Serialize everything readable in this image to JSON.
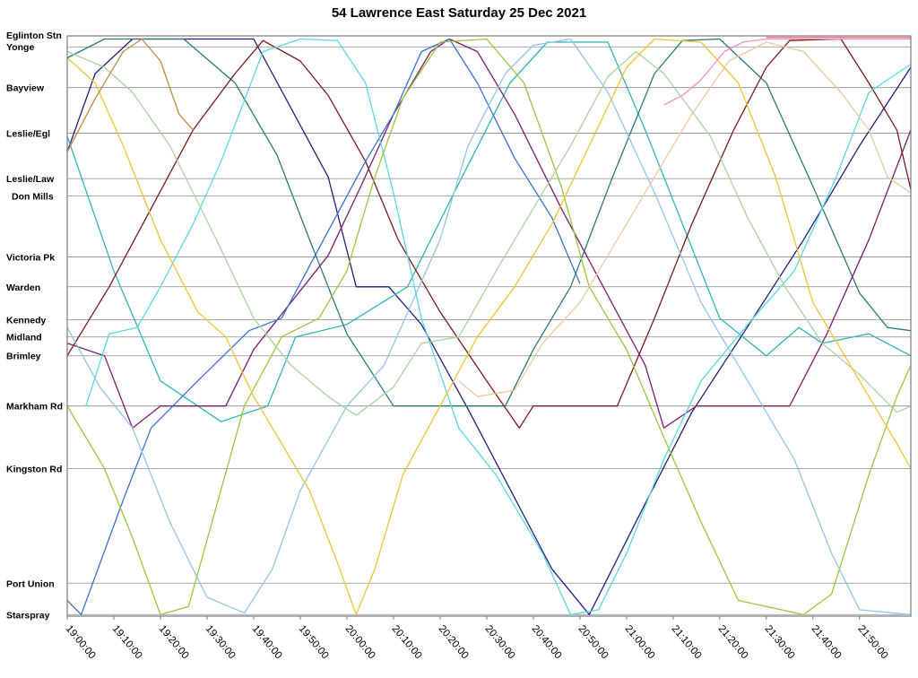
{
  "chart_data": {
    "type": "line",
    "title": "54 Lawrence East Saturday 25 Dec 2021",
    "xlabel": "",
    "ylabel": "",
    "x_unit": "minutes after 19:00:00",
    "xlim": [
      0,
      181
    ],
    "ylim": [
      0,
      18.5
    ],
    "grid": "horizontal",
    "legend": "none",
    "stops": [
      {
        "name": "Eglinton Stn",
        "pos": 0
      },
      {
        "name": "Yonge",
        "pos": 0.35
      },
      {
        "name": "Bayview",
        "pos": 1.65
      },
      {
        "name": "Leslie/Egl",
        "pos": 3.1
      },
      {
        "name": "Leslie/Law",
        "pos": 4.55
      },
      {
        "name": "Don Mills",
        "pos": 5.1
      },
      {
        "name": "Victoria Pk",
        "pos": 7.05
      },
      {
        "name": "Warden",
        "pos": 8.0
      },
      {
        "name": "Kennedy",
        "pos": 9.05
      },
      {
        "name": "Midland",
        "pos": 9.6
      },
      {
        "name": "Brimley",
        "pos": 10.2
      },
      {
        "name": "Markham Rd",
        "pos": 11.8
      },
      {
        "name": "Kingston Rd",
        "pos": 13.8
      },
      {
        "name": "Port Union",
        "pos": 17.45
      },
      {
        "name": "Starspray",
        "pos": 18.45
      }
    ],
    "x_ticks": [
      "19:00:00",
      "19:10:00",
      "19:20:00",
      "19:30:00",
      "19:40:00",
      "19:50:00",
      "20:00:00",
      "20:10:00",
      "20:20:00",
      "20:30:00",
      "20:40:00",
      "20:50:00",
      "21:00:00",
      "21:10:00",
      "21:20:00",
      "21:30:00",
      "21:40:00",
      "21:50:00"
    ],
    "x_tick_values": [
      0,
      10,
      20,
      30,
      40,
      50,
      60,
      70,
      80,
      90,
      100,
      110,
      120,
      130,
      140,
      150,
      160,
      170
    ],
    "series": [
      {
        "color": "#1f1f7a",
        "points": [
          [
            0,
            3.7
          ],
          [
            6,
            1.2
          ],
          [
            14,
            0.1
          ],
          [
            40,
            0.1
          ],
          [
            56,
            4.5
          ],
          [
            62,
            8.0
          ],
          [
            69,
            8.0
          ],
          [
            76,
            9.2
          ],
          [
            86,
            11.9
          ],
          [
            104,
            17.0
          ],
          [
            112,
            18.45
          ],
          [
            122,
            15.5
          ],
          [
            134,
            12.0
          ],
          [
            145,
            9.5
          ],
          [
            158,
            6.5
          ],
          [
            170,
            3.5
          ],
          [
            181,
            1.0
          ]
        ]
      },
      {
        "color": "#2eb5b5",
        "points": [
          [
            0,
            3.2
          ],
          [
            10,
            7.5
          ],
          [
            20,
            11.0
          ],
          [
            33,
            12.3
          ],
          [
            43,
            11.8
          ],
          [
            49,
            9.6
          ],
          [
            60,
            9.2
          ],
          [
            73,
            8.0
          ],
          [
            83,
            5.0
          ],
          [
            95,
            1.5
          ],
          [
            103,
            0.2
          ],
          [
            116,
            0.2
          ],
          [
            124,
            3.0
          ],
          [
            132,
            6.0
          ],
          [
            140,
            9.0
          ],
          [
            150,
            10.2
          ],
          [
            157,
            9.3
          ],
          [
            162,
            9.8
          ],
          [
            172,
            9.5
          ],
          [
            181,
            10.2
          ]
        ]
      },
      {
        "color": "#2a7a7a",
        "points": [
          [
            0,
            0.7
          ],
          [
            8,
            0.1
          ],
          [
            25,
            0.1
          ],
          [
            36,
            1.5
          ],
          [
            45,
            3.8
          ],
          [
            52,
            6.5
          ],
          [
            60,
            9.5
          ],
          [
            70,
            11.8
          ],
          [
            94,
            11.8
          ],
          [
            100,
            10.0
          ],
          [
            108,
            8.0
          ],
          [
            117,
            4.5
          ],
          [
            126,
            1.2
          ],
          [
            132,
            0.15
          ],
          [
            140,
            0.1
          ],
          [
            150,
            1.5
          ],
          [
            160,
            4.8
          ],
          [
            170,
            8.2
          ],
          [
            176,
            9.3
          ],
          [
            181,
            9.4
          ]
        ]
      },
      {
        "color": "#7a1a1a",
        "points": [
          [
            0,
            10.2
          ],
          [
            9,
            8.0
          ],
          [
            18,
            5.5
          ],
          [
            27,
            3.0
          ],
          [
            36,
            1.2
          ],
          [
            42,
            0.15
          ],
          [
            50,
            0.8
          ],
          [
            56,
            1.9
          ],
          [
            64,
            4.0
          ],
          [
            71,
            6.5
          ],
          [
            80,
            8.8
          ],
          [
            90,
            11.0
          ],
          [
            97,
            12.5
          ],
          [
            100,
            11.8
          ],
          [
            118,
            11.8
          ],
          [
            126,
            9.0
          ],
          [
            134,
            6.0
          ],
          [
            143,
            3.0
          ],
          [
            150,
            1.0
          ],
          [
            155,
            0.15
          ],
          [
            166,
            0.1
          ],
          [
            172,
            1.5
          ],
          [
            178,
            3.0
          ],
          [
            181,
            4.9
          ]
        ]
      },
      {
        "color": "#7a1f6e",
        "points": [
          [
            0,
            9.8
          ],
          [
            8,
            10.2
          ],
          [
            14,
            12.5
          ],
          [
            20,
            11.8
          ],
          [
            34,
            11.8
          ],
          [
            40,
            10.0
          ],
          [
            48,
            8.5
          ],
          [
            56,
            7.0
          ],
          [
            63,
            4.8
          ],
          [
            70,
            2.5
          ],
          [
            78,
            0.5
          ],
          [
            82,
            0.1
          ],
          [
            88,
            0.5
          ],
          [
            96,
            2.5
          ],
          [
            106,
            5.5
          ],
          [
            115,
            8.0
          ],
          [
            124,
            10.5
          ],
          [
            128,
            12.5
          ],
          [
            135,
            11.8
          ],
          [
            155,
            11.8
          ],
          [
            163,
            9.5
          ],
          [
            172,
            6.5
          ],
          [
            181,
            3.0
          ]
        ]
      },
      {
        "color": "#3a6fd8",
        "points": [
          [
            0,
            18.0
          ],
          [
            3,
            18.45
          ],
          [
            12,
            14.8
          ],
          [
            18,
            12.5
          ],
          [
            28,
            11.0
          ],
          [
            39,
            9.4
          ],
          [
            46,
            9.0
          ],
          [
            55,
            6.5
          ],
          [
            64,
            4.0
          ],
          [
            70,
            2.5
          ],
          [
            76,
            0.5
          ],
          [
            82,
            0.1
          ],
          [
            88,
            1.5
          ],
          [
            96,
            3.9
          ],
          [
            104,
            5.8
          ],
          [
            110,
            7.9
          ]
        ]
      },
      {
        "color": "#94c4e8",
        "points": [
          [
            0,
            9.3
          ],
          [
            7,
            11.2
          ],
          [
            14,
            12.5
          ],
          [
            22,
            15.5
          ],
          [
            30,
            17.9
          ],
          [
            38,
            18.4
          ],
          [
            44,
            17.0
          ],
          [
            50,
            14.5
          ],
          [
            60,
            11.8
          ],
          [
            68,
            10.5
          ],
          [
            74,
            8.5
          ],
          [
            80,
            6.5
          ],
          [
            86,
            3.5
          ],
          [
            94,
            1.2
          ],
          [
            100,
            0.3
          ],
          [
            108,
            0.1
          ],
          [
            116,
            1.8
          ],
          [
            126,
            5.0
          ],
          [
            136,
            8.5
          ],
          [
            146,
            11.0
          ],
          [
            156,
            13.5
          ],
          [
            164,
            16.5
          ],
          [
            170,
            18.3
          ],
          [
            181,
            18.45
          ]
        ]
      },
      {
        "color": "#58d8e2",
        "points": [
          [
            4,
            11.8
          ],
          [
            9,
            9.5
          ],
          [
            15,
            9.3
          ],
          [
            20,
            8.0
          ],
          [
            27,
            6.0
          ],
          [
            33,
            4.0
          ],
          [
            42,
            0.5
          ],
          [
            50,
            0.1
          ],
          [
            58,
            0.15
          ],
          [
            64,
            1.5
          ],
          [
            70,
            5.0
          ],
          [
            76,
            9.0
          ],
          [
            84,
            12.5
          ],
          [
            92,
            14.0
          ],
          [
            102,
            16.5
          ],
          [
            108,
            18.45
          ],
          [
            114,
            18.3
          ],
          [
            120,
            16.5
          ],
          [
            128,
            13.5
          ],
          [
            136,
            11.0
          ],
          [
            146,
            9.2
          ],
          [
            156,
            7.5
          ],
          [
            165,
            4.5
          ],
          [
            172,
            1.8
          ],
          [
            178,
            1.2
          ],
          [
            181,
            0.9
          ]
        ]
      },
      {
        "color": "#9bc53d",
        "points": [
          [
            0,
            11.8
          ],
          [
            8,
            13.8
          ],
          [
            14,
            16.0
          ],
          [
            20,
            18.45
          ],
          [
            26,
            18.2
          ],
          [
            32,
            15.0
          ],
          [
            38,
            11.8
          ],
          [
            46,
            9.6
          ],
          [
            54,
            9.0
          ],
          [
            60,
            7.5
          ],
          [
            66,
            4.5
          ],
          [
            72,
            2.0
          ],
          [
            80,
            0.2
          ],
          [
            90,
            0.1
          ],
          [
            98,
            1.5
          ],
          [
            106,
            4.8
          ],
          [
            112,
            8.0
          ],
          [
            120,
            10.0
          ],
          [
            128,
            12.8
          ],
          [
            136,
            15.5
          ],
          [
            144,
            18.0
          ],
          [
            158,
            18.45
          ],
          [
            164,
            17.8
          ],
          [
            172,
            14.0
          ],
          [
            178,
            11.5
          ],
          [
            181,
            10.5
          ]
        ]
      },
      {
        "color": "#a8d4a0",
        "points": [
          [
            0,
            0.5
          ],
          [
            8,
            1.0
          ],
          [
            14,
            1.8
          ],
          [
            22,
            3.5
          ],
          [
            32,
            6.5
          ],
          [
            40,
            9.0
          ],
          [
            48,
            10.5
          ],
          [
            56,
            11.5
          ],
          [
            62,
            12.1
          ],
          [
            70,
            11.2
          ],
          [
            76,
            9.8
          ],
          [
            84,
            9.6
          ],
          [
            92,
            7.5
          ],
          [
            100,
            5.5
          ],
          [
            108,
            3.5
          ],
          [
            116,
            1.3
          ],
          [
            122,
            0.5
          ],
          [
            128,
            1.2
          ],
          [
            138,
            3.2
          ],
          [
            146,
            5.8
          ],
          [
            154,
            8.0
          ],
          [
            162,
            9.8
          ],
          [
            170,
            10.8
          ],
          [
            178,
            12.0
          ],
          [
            181,
            11.8
          ]
        ]
      },
      {
        "color": "#f0c430",
        "points": [
          [
            0,
            0.7
          ],
          [
            6,
            1.5
          ],
          [
            12,
            3.5
          ],
          [
            20,
            6.5
          ],
          [
            28,
            8.8
          ],
          [
            34,
            9.6
          ],
          [
            40,
            11.5
          ],
          [
            46,
            13.0
          ],
          [
            52,
            14.5
          ],
          [
            58,
            16.8
          ],
          [
            62,
            18.45
          ],
          [
            66,
            17.0
          ],
          [
            72,
            14.0
          ],
          [
            80,
            11.8
          ],
          [
            88,
            9.6
          ],
          [
            96,
            8.0
          ],
          [
            104,
            6.0
          ],
          [
            112,
            3.5
          ],
          [
            120,
            1.0
          ],
          [
            126,
            0.1
          ],
          [
            136,
            0.2
          ],
          [
            144,
            1.5
          ],
          [
            152,
            4.5
          ],
          [
            160,
            8.5
          ],
          [
            166,
            10.0
          ],
          [
            172,
            11.5
          ],
          [
            178,
            13.0
          ],
          [
            181,
            13.8
          ]
        ]
      },
      {
        "color": "#c08a3a",
        "points": [
          [
            0,
            3.7
          ],
          [
            6,
            2.0
          ],
          [
            12,
            0.5
          ],
          [
            16,
            0.1
          ],
          [
            20,
            0.8
          ],
          [
            24,
            2.5
          ],
          [
            27,
            3.0
          ]
        ]
      },
      {
        "color": "#f2c8a0",
        "points": [
          [
            84,
            11.0
          ],
          [
            88,
            11.5
          ],
          [
            96,
            11.3
          ],
          [
            102,
            9.8
          ],
          [
            110,
            8.5
          ],
          [
            118,
            6.5
          ],
          [
            126,
            4.5
          ],
          [
            134,
            2.5
          ],
          [
            142,
            0.8
          ],
          [
            150,
            0.2
          ],
          [
            158,
            0.5
          ],
          [
            166,
            1.8
          ],
          [
            172,
            3.0
          ],
          [
            176,
            4.5
          ],
          [
            181,
            5.0
          ]
        ]
      },
      {
        "color": "#ee90c8",
        "points": [
          [
            128,
            2.2
          ],
          [
            132,
            1.9
          ],
          [
            136,
            1.4
          ],
          [
            141,
            0.5
          ],
          [
            145,
            0.2
          ],
          [
            150,
            0.1
          ],
          [
            181,
            0.1
          ]
        ]
      },
      {
        "color": "#f07a7a",
        "points": [
          [
            150,
            0.05
          ],
          [
            181,
            0.05
          ]
        ]
      }
    ]
  }
}
